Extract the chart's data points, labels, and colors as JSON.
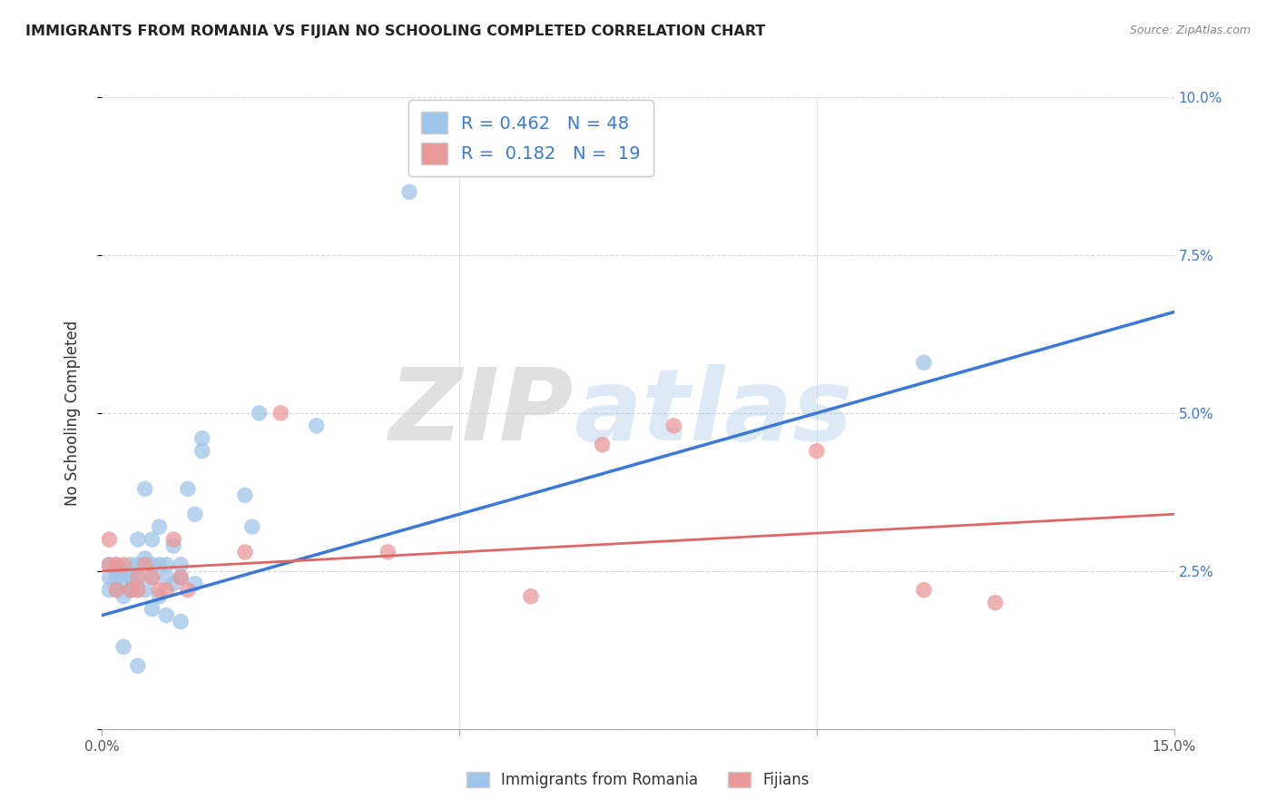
{
  "title": "IMMIGRANTS FROM ROMANIA VS FIJIAN NO SCHOOLING COMPLETED CORRELATION CHART",
  "source": "Source: ZipAtlas.com",
  "ylabel": "No Schooling Completed",
  "xlim": [
    0.0,
    0.15
  ],
  "ylim": [
    0.0,
    0.1
  ],
  "xticks": [
    0.0,
    0.15
  ],
  "yticks": [
    0.0,
    0.025,
    0.05,
    0.075,
    0.1
  ],
  "xticklabels": [
    "0.0%",
    "15.0%"
  ],
  "yticklabels_right": [
    "",
    "2.5%",
    "5.0%",
    "7.5%",
    "10.0%"
  ],
  "blue_color": "#9fc5e8",
  "pink_color": "#ea9999",
  "blue_line_color": "#3c78d8",
  "pink_line_color": "#e06666",
  "watermark_zip": "ZIP",
  "watermark_atlas": "atlas",
  "legend_label_blue": "Immigrants from Romania",
  "legend_label_pink": "Fijians",
  "blue_scatter_x": [
    0.001,
    0.001,
    0.001,
    0.002,
    0.002,
    0.002,
    0.002,
    0.003,
    0.003,
    0.003,
    0.003,
    0.004,
    0.004,
    0.004,
    0.005,
    0.005,
    0.005,
    0.005,
    0.005,
    0.006,
    0.006,
    0.006,
    0.007,
    0.007,
    0.007,
    0.007,
    0.008,
    0.008,
    0.008,
    0.009,
    0.009,
    0.009,
    0.01,
    0.01,
    0.011,
    0.011,
    0.011,
    0.012,
    0.013,
    0.013,
    0.014,
    0.014,
    0.02,
    0.021,
    0.022,
    0.03,
    0.043,
    0.115
  ],
  "blue_scatter_y": [
    0.026,
    0.024,
    0.022,
    0.026,
    0.025,
    0.024,
    0.022,
    0.025,
    0.023,
    0.021,
    0.013,
    0.026,
    0.024,
    0.022,
    0.03,
    0.026,
    0.024,
    0.022,
    0.01,
    0.038,
    0.027,
    0.022,
    0.03,
    0.026,
    0.024,
    0.019,
    0.032,
    0.026,
    0.021,
    0.026,
    0.024,
    0.018,
    0.029,
    0.023,
    0.026,
    0.024,
    0.017,
    0.038,
    0.034,
    0.023,
    0.046,
    0.044,
    0.037,
    0.032,
    0.05,
    0.048,
    0.085,
    0.058
  ],
  "pink_scatter_x": [
    0.001,
    0.001,
    0.002,
    0.002,
    0.003,
    0.004,
    0.005,
    0.005,
    0.006,
    0.007,
    0.008,
    0.009,
    0.01,
    0.011,
    0.012,
    0.02,
    0.025,
    0.04,
    0.06,
    0.07,
    0.08,
    0.1,
    0.115,
    0.125
  ],
  "pink_scatter_y": [
    0.03,
    0.026,
    0.026,
    0.022,
    0.026,
    0.022,
    0.024,
    0.022,
    0.026,
    0.024,
    0.022,
    0.022,
    0.03,
    0.024,
    0.022,
    0.028,
    0.05,
    0.028,
    0.021,
    0.045,
    0.048,
    0.044,
    0.022,
    0.02
  ],
  "blue_line_x": [
    0.0,
    0.15
  ],
  "blue_line_y": [
    0.018,
    0.066
  ],
  "pink_line_x": [
    0.0,
    0.15
  ],
  "pink_line_y": [
    0.025,
    0.034
  ]
}
